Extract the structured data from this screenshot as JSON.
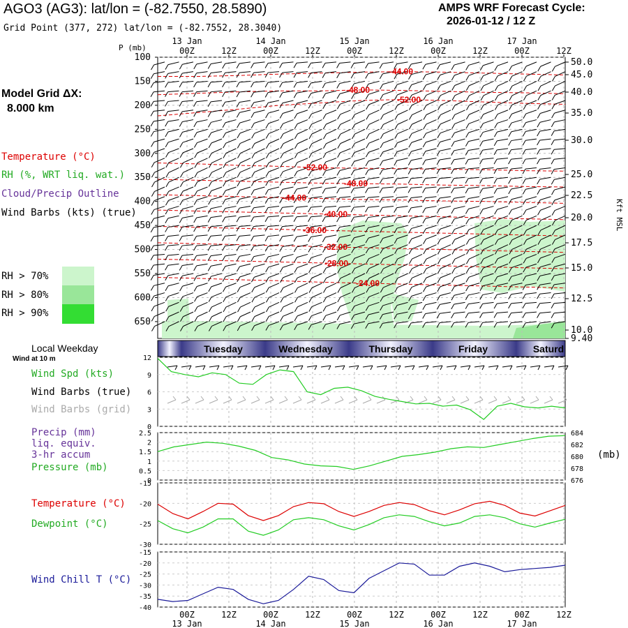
{
  "header": {
    "title": "AGO3 (AG3):  lat/lon = (-82.7550, 28.5890)",
    "subtitle": "Grid Point (377, 272) lat/lon = (-82.7552, 28.3040)",
    "cycle_label": "AMPS WRF Forecast Cycle:",
    "cycle_value": "2026-01-12 / 12  Z"
  },
  "left_legend": {
    "model_grid_label": "Model Grid ΔX:",
    "model_grid_value": "8.000 km",
    "temperature": "Temperature (°C)",
    "rh": "RH (%, WRT liq. wat.)",
    "cloud": "Cloud/Precip Outline",
    "wind_barbs": "Wind Barbs (kts) (true)",
    "rh70": "RH > 70%",
    "rh80": "RH > 80%",
    "rh90": "RH > 90%"
  },
  "colors": {
    "temperature": "#dd0000",
    "rh": "#22aa22",
    "cloud": "#663399",
    "rh70": "#ccf5cc",
    "rh80": "#99e699",
    "rh90": "#33dd33",
    "line_green": "#22cc22",
    "line_blue": "#1a1a99",
    "barb_grid": "#aaaaaa"
  },
  "time_axis": {
    "tick_labels": [
      "00Z",
      "12Z",
      "00Z",
      "12Z",
      "00Z",
      "12Z",
      "00Z",
      "12Z",
      "00Z",
      "12Z"
    ],
    "date_labels": [
      "13 Jan",
      "14 Jan",
      "15 Jan",
      "16 Jan",
      "17 Jan"
    ],
    "p_axis_label": "P (mb)"
  },
  "weekday_strip": {
    "label": "Local Weekday",
    "days": [
      "Tuesday",
      "Wednesday",
      "Thursday",
      "Friday",
      "Saturd"
    ]
  },
  "chart_data": [
    {
      "type": "cross-section",
      "title": "",
      "ylabel": "P (mb)",
      "ylabel_right": "Kft MSL",
      "pressure_ticks": [
        100,
        150,
        200,
        250,
        300,
        350,
        400,
        450,
        500,
        550,
        600,
        650
      ],
      "height_ticks": [
        "50.0",
        "45.0",
        "40.0",
        "35.0",
        "30.0",
        "25.0",
        "22.5",
        "20.0",
        "17.5",
        "15.0",
        "12.5",
        "10.0",
        "9.40"
      ],
      "temperature_contours": [
        {
          "label": "-44.00",
          "value": -44,
          "pressure": [
            140,
            140,
            138,
            135,
            133,
            131,
            130,
            131,
            133,
            135,
            137
          ]
        },
        {
          "label": "-48.00",
          "value": -48,
          "pressure": [
            178,
            175,
            172,
            170,
            170,
            168,
            169,
            171,
            173,
            174,
            176
          ]
        },
        {
          "label": "-52.00",
          "value": -52,
          "pressure": [
            222,
            215,
            208,
            200,
            195,
            190,
            188,
            190,
            193,
            196,
            198
          ]
        },
        {
          "label": "-52.00",
          "value": -52,
          "pressure": [
            320,
            322,
            325,
            327,
            330,
            331,
            332,
            333,
            334,
            336,
            337
          ]
        },
        {
          "label": "-48.00",
          "value": -48,
          "pressure": [
            354,
            356,
            358,
            360,
            362,
            363,
            364,
            366,
            367,
            369,
            370
          ]
        },
        {
          "label": "-44.00",
          "value": -44,
          "pressure": [
            386,
            388,
            390,
            392,
            394,
            396,
            397,
            399,
            400,
            402,
            404
          ]
        },
        {
          "label": "-40.00",
          "value": -40,
          "pressure": [
            418,
            420,
            422,
            424,
            426,
            428,
            430,
            432,
            434,
            436,
            438
          ]
        },
        {
          "label": "-36.00",
          "value": -36,
          "pressure": [
            452,
            454,
            456,
            458,
            460,
            462,
            464,
            466,
            468,
            470,
            472
          ]
        },
        {
          "label": "-32.00",
          "value": -32,
          "pressure": [
            486,
            488,
            490,
            492,
            494,
            496,
            498,
            500,
            502,
            504,
            506
          ]
        },
        {
          "label": "-28.00",
          "value": -28,
          "pressure": [
            520,
            522,
            524,
            526,
            528,
            530,
            532,
            534,
            536,
            538,
            540
          ]
        },
        {
          "label": "-24.00",
          "value": -24,
          "pressure": [
            558,
            560,
            563,
            565,
            568,
            570,
            572,
            574,
            576,
            578,
            580
          ]
        }
      ]
    },
    {
      "type": "line",
      "series_labels": [
        "Wind Spd (kts)",
        "Wind Barbs (true)",
        "Wind Barbs (grid)"
      ],
      "title_small": "Wind at 10 m",
      "ylim": [
        0,
        12
      ],
      "yticks": [
        0,
        3,
        6,
        9,
        12
      ],
      "values": [
        11.8,
        9.5,
        9,
        8.6,
        9.3,
        9,
        7.5,
        7.3,
        9,
        9.8,
        9.5,
        6,
        5.5,
        6.6,
        6.8,
        6.2,
        5.2,
        4.7,
        4.3,
        3.9,
        4,
        3.5,
        3.7,
        2.9,
        1.2,
        3.5,
        4,
        3.4,
        3.2,
        3.5,
        3.2
      ]
    },
    {
      "type": "line",
      "series_labels": [
        "Precip (mm)",
        "liq. equiv.",
        "3-hr accum",
        "Pressure (mb)"
      ],
      "ylim_left": [
        0,
        2.5
      ],
      "yticks_left": [
        "0",
        "0.5",
        "1",
        "1.5",
        "2",
        "2.5"
      ],
      "ylim_right": [
        676,
        684
      ],
      "yticks_right": [
        676,
        678,
        680,
        682,
        684
      ],
      "unit_right": "(mb)",
      "values": [
        680.8,
        681.6,
        682.0,
        682.4,
        682.2,
        681.7,
        681.0,
        679.8,
        679.4,
        678.7,
        678.4,
        678.3,
        677.8,
        678.4,
        679.2,
        680.0,
        680.3,
        680.7,
        681.3,
        681.6,
        681.5,
        682.0,
        682.5,
        683.0,
        683.4,
        683.5
      ]
    },
    {
      "type": "line",
      "series_labels": [
        "Temperature (°C)",
        "Dewpoint (°C)"
      ],
      "ylim": [
        -30,
        -15
      ],
      "yticks": [
        -30,
        -25,
        -20,
        -15
      ],
      "series": [
        {
          "name": "Temperature (°C)",
          "values": [
            -20.2,
            -22.5,
            -23.8,
            -22.0,
            -20.0,
            -20.2,
            -23.0,
            -24.2,
            -23.0,
            -20.8,
            -19.8,
            -20.1,
            -22.0,
            -23.2,
            -22.0,
            -20.5,
            -19.8,
            -20.3,
            -21.8,
            -22.8,
            -21.6,
            -20.1,
            -19.5,
            -20.5,
            -22.4,
            -23.1,
            -21.8,
            -20.5
          ]
        },
        {
          "name": "Dewpoint (°C)",
          "values": [
            -24.2,
            -26.2,
            -27.2,
            -25.8,
            -23.8,
            -23.8,
            -26.8,
            -27.8,
            -26.5,
            -24.0,
            -23.5,
            -24.0,
            -25.5,
            -26.5,
            -25.2,
            -23.5,
            -22.8,
            -23.2,
            -24.5,
            -25.5,
            -24.8,
            -23.2,
            -22.8,
            -23.5,
            -25.0,
            -25.8,
            -24.8,
            -23.9
          ]
        }
      ]
    },
    {
      "type": "line",
      "series_labels": [
        "Wind Chill T (°C)"
      ],
      "ylim": [
        -40,
        -15
      ],
      "yticks": [
        -40,
        -35,
        -30,
        -25,
        -20,
        -15
      ],
      "values": [
        -36.5,
        -37.5,
        -37.0,
        -34.0,
        -31.0,
        -32.0,
        -36.5,
        -38.5,
        -37.0,
        -32.0,
        -26.0,
        -27.5,
        -32.5,
        -33.5,
        -27.0,
        -23.5,
        -20.0,
        -20.5,
        -25.5,
        -25.5,
        -21.5,
        -20.0,
        -21.5,
        -24.0,
        -23.0,
        -22.5,
        -22.0,
        -21.0
      ]
    }
  ]
}
